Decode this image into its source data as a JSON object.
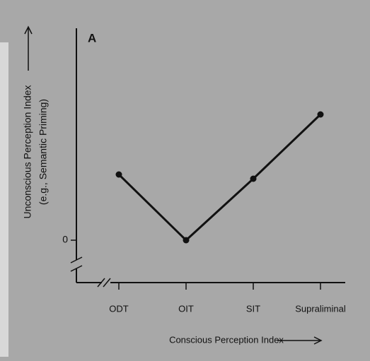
{
  "chart_data": {
    "type": "line",
    "panel_label": "A",
    "x_label": "Conscious Perception Index",
    "y_label": [
      "Unconscious Perception Index",
      "(e.g., Semantic Priming)"
    ],
    "categories": [
      "ODT",
      "OIT",
      "SIT",
      "Supraliminal"
    ],
    "series": [
      {
        "name": "Unconscious Perception Index",
        "color": "#111111",
        "values": [
          0.93,
          0,
          0.87,
          1.78
        ]
      }
    ],
    "ylim": [
      -0.6,
      3.0
    ],
    "yticks": [
      0
    ],
    "grid": false
  }
}
